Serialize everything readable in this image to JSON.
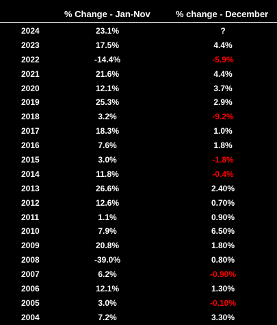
{
  "table": {
    "headers": {
      "year": "",
      "jan_nov": "% Change - Jan-Nov",
      "december": "% change - December"
    },
    "rows": [
      {
        "year": "2024",
        "jan_nov": "23.1%",
        "december": "?",
        "december_negative": false
      },
      {
        "year": "2023",
        "jan_nov": "17.5%",
        "december": "4.4%",
        "december_negative": false
      },
      {
        "year": "2022",
        "jan_nov": "-14.4%",
        "december": "-5.9%",
        "december_negative": true
      },
      {
        "year": "2021",
        "jan_nov": "21.6%",
        "december": "4.4%",
        "december_negative": false
      },
      {
        "year": "2020",
        "jan_nov": "12.1%",
        "december": "3.7%",
        "december_negative": false
      },
      {
        "year": "2019",
        "jan_nov": "25.3%",
        "december": "2.9%",
        "december_negative": false
      },
      {
        "year": "2018",
        "jan_nov": "3.2%",
        "december": "-9.2%",
        "december_negative": true
      },
      {
        "year": "2017",
        "jan_nov": "18.3%",
        "december": "1.0%",
        "december_negative": false
      },
      {
        "year": "2016",
        "jan_nov": "7.6%",
        "december": "1.8%",
        "december_negative": false
      },
      {
        "year": "2015",
        "jan_nov": "3.0%",
        "december": "-1.8%",
        "december_negative": true
      },
      {
        "year": "2014",
        "jan_nov": "11.8%",
        "december": "-0.4%",
        "december_negative": true
      },
      {
        "year": "2013",
        "jan_nov": "26.6%",
        "december": "2.40%",
        "december_negative": false
      },
      {
        "year": "2012",
        "jan_nov": "12.6%",
        "december": "0.70%",
        "december_negative": false
      },
      {
        "year": "2011",
        "jan_nov": "1.1%",
        "december": "0.90%",
        "december_negative": false
      },
      {
        "year": "2010",
        "jan_nov": "7.9%",
        "december": "6.50%",
        "december_negative": false
      },
      {
        "year": "2009",
        "jan_nov": "20.8%",
        "december": "1.80%",
        "december_negative": false
      },
      {
        "year": "2008",
        "jan_nov": "-39.0%",
        "december": "0.80%",
        "december_negative": false
      },
      {
        "year": "2007",
        "jan_nov": "6.2%",
        "december": "-0.90%",
        "december_negative": true
      },
      {
        "year": "2006",
        "jan_nov": "12.1%",
        "december": "1.30%",
        "december_negative": false
      },
      {
        "year": "2005",
        "jan_nov": "3.0%",
        "december": "-0.10%",
        "december_negative": true
      },
      {
        "year": "2004",
        "jan_nov": "7.2%",
        "december": "3.30%",
        "december_negative": false
      }
    ]
  },
  "colors": {
    "background": "#000000",
    "text": "#ffffff",
    "negative": "#ff0000"
  }
}
